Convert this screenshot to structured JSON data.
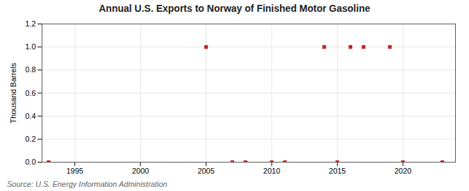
{
  "chart_data": {
    "type": "scatter",
    "title": "Annual U.S. Exports to Norway of Finished Motor Gasoline",
    "ylabel": "Thousand Barrels",
    "caption": "Source: U.S. Energy Information Administration",
    "x": [
      1993,
      2005,
      2007,
      2008,
      2010,
      2011,
      2014,
      2015,
      2016,
      2017,
      2019,
      2020,
      2023
    ],
    "values": [
      0,
      1,
      0,
      0,
      0,
      0,
      1,
      0,
      1,
      1,
      1,
      0,
      0
    ],
    "color": "#cc2222",
    "marker": "square",
    "xlim": [
      1992.5,
      2024
    ],
    "xticks": [
      1995,
      2000,
      2005,
      2010,
      2015,
      2020
    ],
    "ylim": [
      0,
      1.2
    ],
    "yticks": [
      {
        "value": 0,
        "label": "0.0"
      },
      0.2,
      0.4,
      0.6,
      0.8,
      {
        "value": 1,
        "label": "1.0"
      },
      1.2
    ],
    "grid": true
  }
}
